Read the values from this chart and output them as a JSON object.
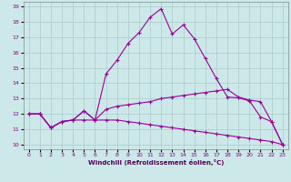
{
  "xlabel": "Windchill (Refroidissement éolien,°C)",
  "background_color": "#cce8e8",
  "grid_color": "#aacccc",
  "line_color": "#990099",
  "xlim": [
    -0.5,
    23.5
  ],
  "ylim": [
    9.7,
    19.3
  ],
  "yticks": [
    10,
    11,
    12,
    13,
    14,
    15,
    16,
    17,
    18,
    19
  ],
  "xticks": [
    0,
    1,
    2,
    3,
    4,
    5,
    6,
    7,
    8,
    9,
    10,
    11,
    12,
    13,
    14,
    15,
    16,
    17,
    18,
    19,
    20,
    21,
    22,
    23
  ],
  "series_main_x": [
    0,
    1,
    2,
    3,
    4,
    5,
    6,
    7,
    8,
    9,
    10,
    11,
    12,
    13,
    14,
    15,
    16,
    17,
    18,
    19,
    20,
    21,
    22,
    23
  ],
  "series_main_y": [
    12.0,
    12.0,
    11.1,
    11.5,
    11.6,
    12.2,
    11.6,
    14.6,
    15.5,
    16.6,
    17.3,
    18.3,
    18.85,
    17.2,
    17.8,
    16.9,
    15.6,
    14.3,
    13.1,
    13.05,
    12.85,
    11.8,
    11.5,
    10.0
  ],
  "series_mid_x": [
    0,
    1,
    2,
    3,
    4,
    5,
    6,
    7,
    8,
    9,
    10,
    11,
    12,
    13,
    14,
    15,
    16,
    17,
    18,
    19,
    20,
    21,
    22,
    23
  ],
  "series_mid_y": [
    12.0,
    12.0,
    11.1,
    11.5,
    11.6,
    12.2,
    11.6,
    12.3,
    12.5,
    12.6,
    12.7,
    12.8,
    13.0,
    13.1,
    13.2,
    13.3,
    13.4,
    13.5,
    13.6,
    13.1,
    12.9,
    12.8,
    11.5,
    10.0
  ],
  "series_low_x": [
    0,
    1,
    2,
    3,
    4,
    5,
    6,
    7,
    8,
    9,
    10,
    11,
    12,
    13,
    14,
    15,
    16,
    17,
    18,
    19,
    20,
    21,
    22,
    23
  ],
  "series_low_y": [
    12.0,
    12.0,
    11.1,
    11.5,
    11.6,
    11.6,
    11.6,
    11.6,
    11.6,
    11.5,
    11.4,
    11.3,
    11.2,
    11.1,
    11.0,
    10.9,
    10.8,
    10.7,
    10.6,
    10.5,
    10.4,
    10.3,
    10.2,
    10.0
  ]
}
